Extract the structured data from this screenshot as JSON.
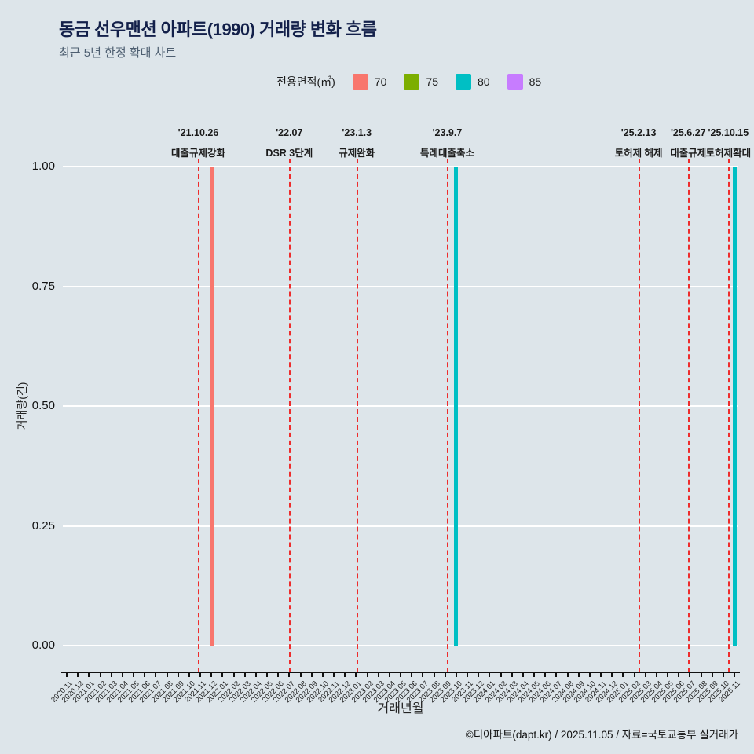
{
  "header": {
    "title": "동금 선우맨션 아파트(1990) 거래량 변화 흐름",
    "subtitle": "최근 5년 한정 확대 차트"
  },
  "legend": {
    "label": "전용면적(㎡)",
    "items": [
      {
        "label": "70",
        "color": "#F8766D"
      },
      {
        "label": "75",
        "color": "#7CAE00"
      },
      {
        "label": "80",
        "color": "#00BFC4"
      },
      {
        "label": "85",
        "color": "#C77CFF"
      }
    ]
  },
  "footer": {
    "credit": "©디아파트(dapt.kr) / 2025.11.05 / 자료=국토교통부 실거래가"
  },
  "chart_data": {
    "type": "bar",
    "title": "동금 선우맨션 아파트(1990) 거래량 변화 흐름",
    "subtitle": "최근 5년 한정 확대 차트",
    "xlabel": "거래년월",
    "ylabel": "거래량(건)",
    "ylim": [
      0,
      1
    ],
    "yticks": [
      0,
      0.25,
      0.5,
      0.75,
      1
    ],
    "ytick_labels": [
      "0.00",
      "0.25",
      "0.50",
      "0.75",
      "1.00"
    ],
    "grid": true,
    "legend_position": "top",
    "categories": [
      "2020.11",
      "2020.12",
      "2021.01",
      "2021.02",
      "2021.03",
      "2021.04",
      "2021.05",
      "2021.06",
      "2021.07",
      "2021.08",
      "2021.09",
      "2021.10",
      "2021.11",
      "2021.12",
      "2022.01",
      "2022.02",
      "2022.03",
      "2022.04",
      "2022.05",
      "2022.06",
      "2022.07",
      "2022.08",
      "2022.09",
      "2022.10",
      "2022.11",
      "2022.12",
      "2023.01",
      "2023.02",
      "2023.03",
      "2023.04",
      "2023.05",
      "2023.06",
      "2023.07",
      "2023.08",
      "2023.09",
      "2023.10",
      "2023.11",
      "2023.12",
      "2024.01",
      "2024.02",
      "2024.03",
      "2024.04",
      "2024.05",
      "2024.06",
      "2024.07",
      "2024.08",
      "2024.09",
      "2024.10",
      "2024.11",
      "2024.12",
      "2025.01",
      "2025.02",
      "2025.03",
      "2025.04",
      "2025.05",
      "2025.06",
      "2025.07",
      "2025.08",
      "2025.09",
      "2025.10",
      "2025.11"
    ],
    "bars": [
      {
        "category": "2021.12",
        "series": "70",
        "value": 1,
        "color": "#F8766D"
      },
      {
        "category": "2023.10",
        "series": "80",
        "value": 1,
        "color": "#00BFC4"
      },
      {
        "category": "2025.11",
        "series": "80",
        "value": 1,
        "color": "#00BFC4"
      }
    ],
    "events": [
      {
        "date_label": "'21.10.26",
        "label": "대출규제강화",
        "year_month": "2021.10",
        "day": 26
      },
      {
        "date_label": "'22.07",
        "label": "DSR 3단계",
        "year_month": "2022.07",
        "day": 1
      },
      {
        "date_label": "'23.1.3",
        "label": "규제완화",
        "year_month": "2023.01",
        "day": 3
      },
      {
        "date_label": "'23.9.7",
        "label": "특례대출축소",
        "year_month": "2023.09",
        "day": 7
      },
      {
        "date_label": "'25.2.13",
        "label": "토허제 해제",
        "year_month": "2025.02",
        "day": 13
      },
      {
        "date_label": "'25.6.27",
        "label": "대출규제",
        "year_month": "2025.06",
        "day": 27
      },
      {
        "date_label": "'25.10.15",
        "label": "토허제확대",
        "year_month": "2025.10",
        "day": 15
      }
    ],
    "colors": {
      "background": "#dde5ea",
      "grid": "#ffffff",
      "axis": "#111111",
      "event_line": "#ee2c2c"
    }
  }
}
